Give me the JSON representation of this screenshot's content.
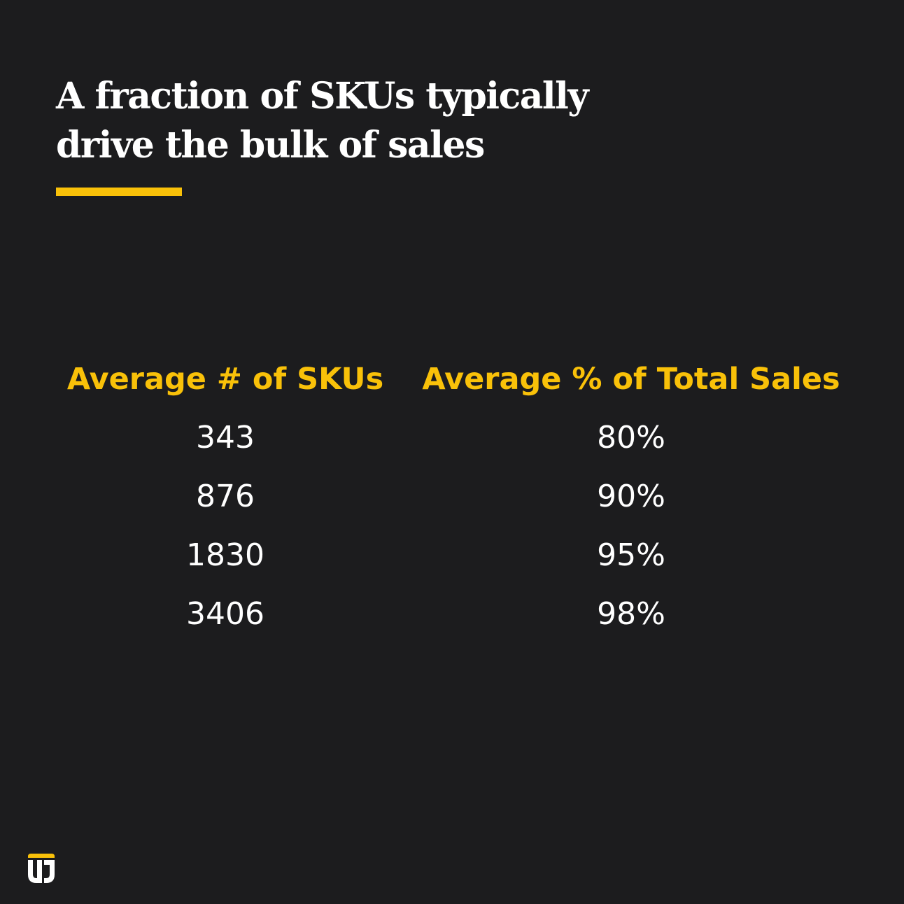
{
  "title_lines": [
    "A fraction of SKUs typically",
    "drive the bulk of sales"
  ],
  "colors": {
    "background": "#1c1c1e",
    "accent": "#f9c109",
    "text": "#ffffff"
  },
  "logo_icon": "tj-logo-icon",
  "chart_data": {
    "type": "table",
    "title": "A fraction of SKUs typically drive the bulk of sales",
    "columns": [
      "Average # of SKUs",
      "Average % of Total Sales"
    ],
    "rows": [
      [
        "343",
        "80%"
      ],
      [
        "876",
        "90%"
      ],
      [
        "1830",
        "95%"
      ],
      [
        "3406",
        "98%"
      ]
    ]
  }
}
